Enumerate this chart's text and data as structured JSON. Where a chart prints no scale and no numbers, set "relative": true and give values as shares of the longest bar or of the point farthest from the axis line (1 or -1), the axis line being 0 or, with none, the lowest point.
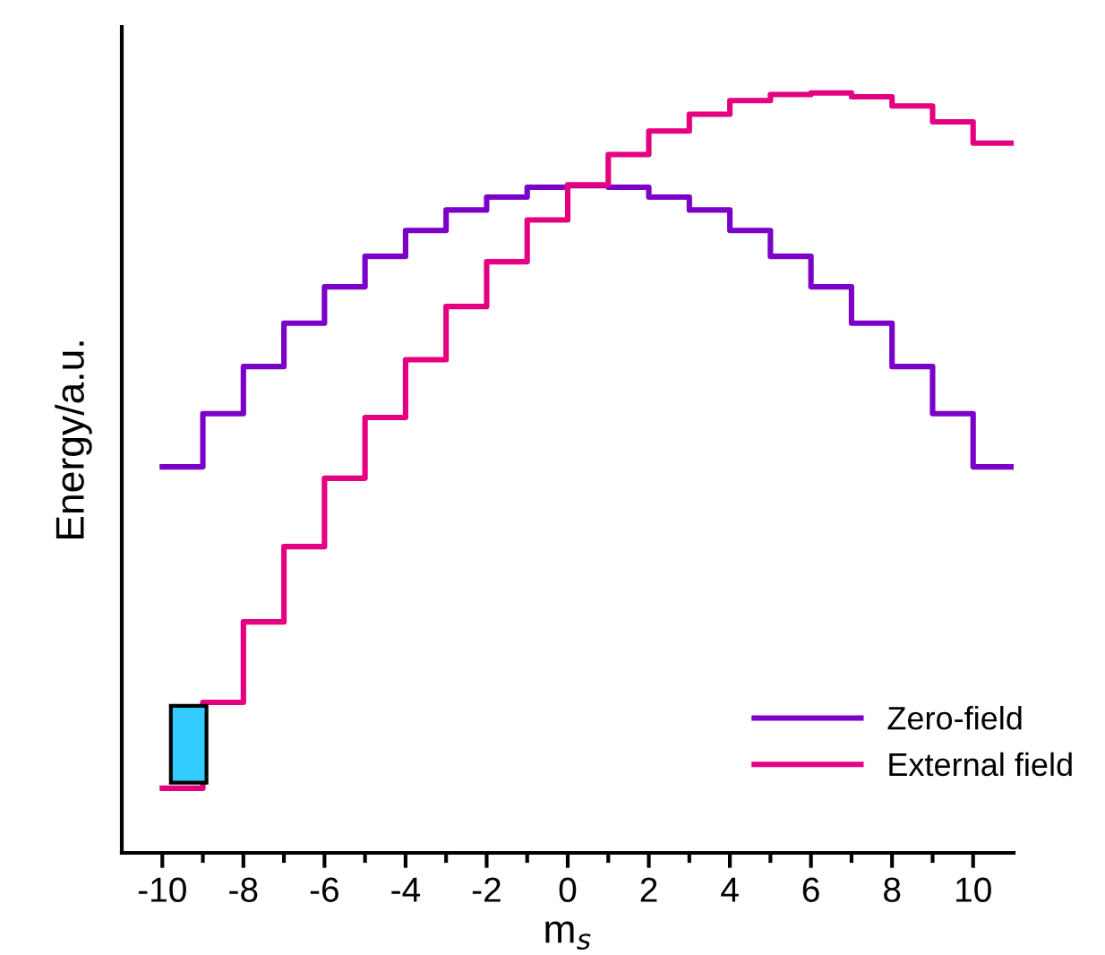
{
  "chart_data": {
    "type": "step",
    "relative": true,
    "xlabel": "m$_{s}$",
    "ylabel": "Energy/a.u.",
    "xlim": [
      -11,
      11
    ],
    "xticks": [
      -10,
      -8,
      -6,
      -4,
      -2,
      0,
      2,
      4,
      6,
      8,
      10
    ],
    "tick_labels": "x",
    "legend": "bottom right",
    "grid": false,
    "x": [
      -10,
      -9,
      -8,
      -7,
      -6,
      -5,
      -4,
      -3,
      -2,
      -1,
      0,
      1,
      2,
      3,
      4,
      5,
      6,
      7,
      8,
      9,
      10,
      11
    ],
    "series": [
      {
        "name": "Zero-field",
        "color": "#7b00c8",
        "values": [
          0.508,
          0.578,
          0.64,
          0.697,
          0.745,
          0.785,
          0.819,
          0.846,
          0.863,
          0.876,
          0.878,
          0.876,
          0.863,
          0.846,
          0.819,
          0.785,
          0.745,
          0.697,
          0.64,
          0.578,
          0.508,
          0.508
        ]
      },
      {
        "name": "External field",
        "color": "#e4007f",
        "values": [
          0.085,
          0.198,
          0.304,
          0.403,
          0.493,
          0.573,
          0.649,
          0.719,
          0.778,
          0.833,
          0.879,
          0.919,
          0.95,
          0.972,
          0.99,
          0.998,
          1,
          0.995,
          0.983,
          0.962,
          0.934,
          0.934
        ]
      }
    ]
  }
}
